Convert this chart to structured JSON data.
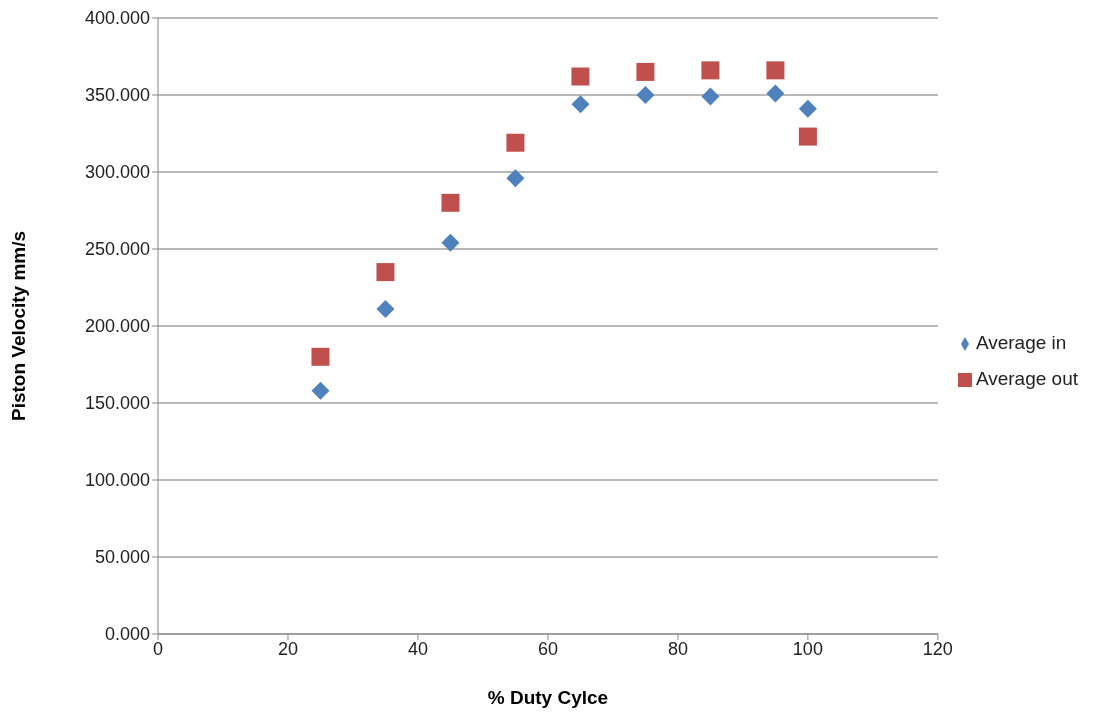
{
  "chart_data": {
    "type": "scatter",
    "xlabel": "% Duty Cylce",
    "ylabel": "Piston Velocity mm/s",
    "x": [
      25,
      35,
      45,
      55,
      65,
      75,
      85,
      95,
      100
    ],
    "series": [
      {
        "name": "Average in",
        "color": "#4f81bd",
        "marker": "diamond",
        "values": [
          158,
          211,
          254,
          296,
          344,
          350,
          349,
          351,
          341
        ]
      },
      {
        "name": "Average out",
        "color": "#c0504d",
        "marker": "square",
        "values": [
          180,
          235,
          280,
          319,
          362,
          365,
          366,
          366,
          323
        ]
      }
    ],
    "xlim": [
      0,
      120
    ],
    "xticks": [
      0,
      20,
      40,
      60,
      80,
      100,
      120
    ],
    "ylim": [
      0,
      400
    ],
    "yticks": [
      {
        "value": 0,
        "label": "0.000"
      },
      {
        "value": 50,
        "label": "50.000"
      },
      {
        "value": 100,
        "label": "100.000"
      },
      {
        "value": 150,
        "label": "150.000"
      },
      {
        "value": 200,
        "label": "200.000"
      },
      {
        "value": 250,
        "label": "250.000"
      },
      {
        "value": 300,
        "label": "300.000"
      },
      {
        "value": 350,
        "label": "350.000"
      },
      {
        "value": 400,
        "label": "400.000"
      }
    ],
    "grid": "y",
    "legend": "right"
  }
}
